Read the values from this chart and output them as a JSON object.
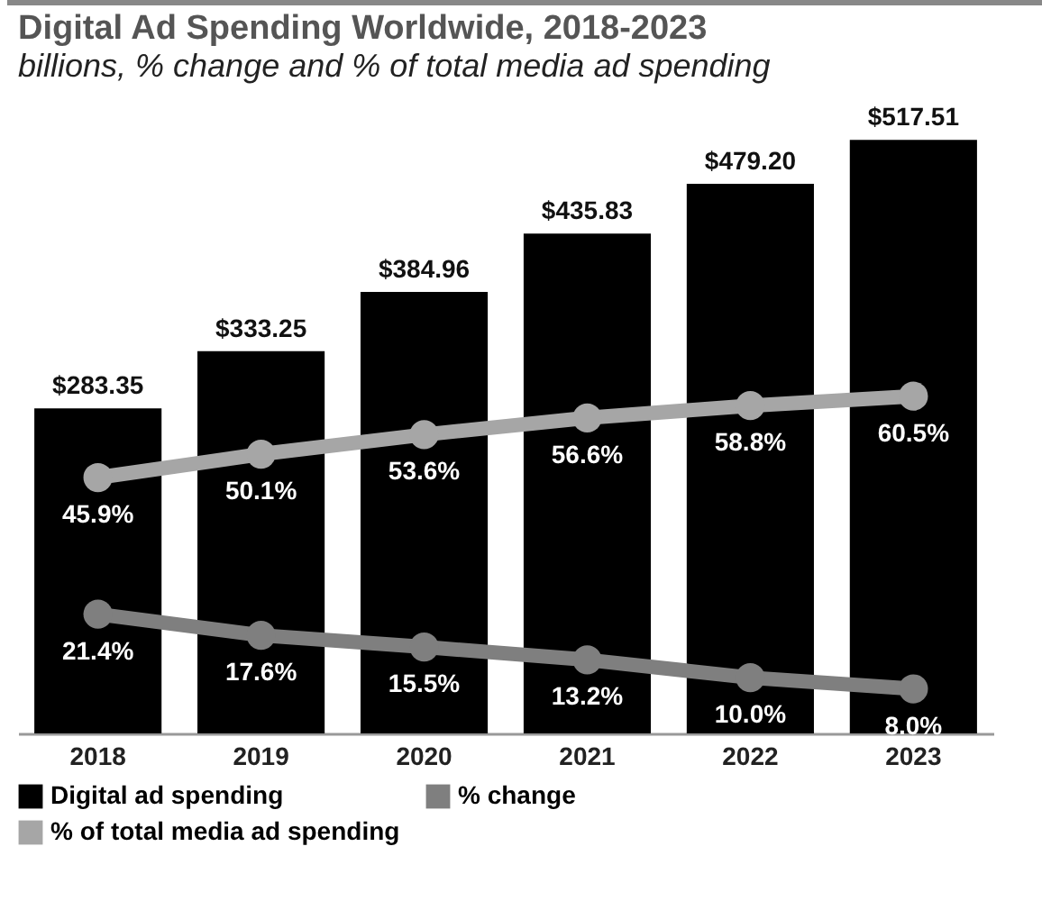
{
  "chart_data": {
    "type": "bar",
    "title": "Digital Ad Spending Worldwide, 2018-2023",
    "subtitle": "billions, % change and % of total media ad spending",
    "categories": [
      "2018",
      "2019",
      "2020",
      "2021",
      "2022",
      "2023"
    ],
    "series": [
      {
        "name": "Digital ad spending",
        "color": "#000000",
        "values": [
          283.35,
          333.25,
          384.96,
          435.83,
          479.2,
          517.51
        ],
        "value_labels": [
          "$283.35",
          "$333.25",
          "$384.96",
          "$435.83",
          "$479.20",
          "$517.51"
        ]
      },
      {
        "name": "% change",
        "type": "line",
        "axis": "y2",
        "color": "#7f7f7f",
        "values": [
          21.4,
          17.6,
          15.5,
          13.2,
          10.0,
          8.0
        ],
        "value_labels": [
          "21.4%",
          "17.6%",
          "15.5%",
          "13.2%",
          "10.0%",
          "8.0%"
        ]
      },
      {
        "name": "% of total media ad spending",
        "type": "line",
        "axis": "y2",
        "color": "#a6a6a6",
        "values": [
          45.9,
          50.1,
          53.6,
          56.6,
          58.8,
          60.5
        ],
        "value_labels": [
          "45.9%",
          "50.1%",
          "53.6%",
          "56.6%",
          "58.8%",
          "60.5%"
        ]
      }
    ],
    "ylim": [
      0,
      520
    ],
    "y2lim": [
      0,
      107
    ],
    "tick_labels": "x",
    "grid": false,
    "legend": "bottom",
    "marker": "circle",
    "line_style": "solid"
  }
}
